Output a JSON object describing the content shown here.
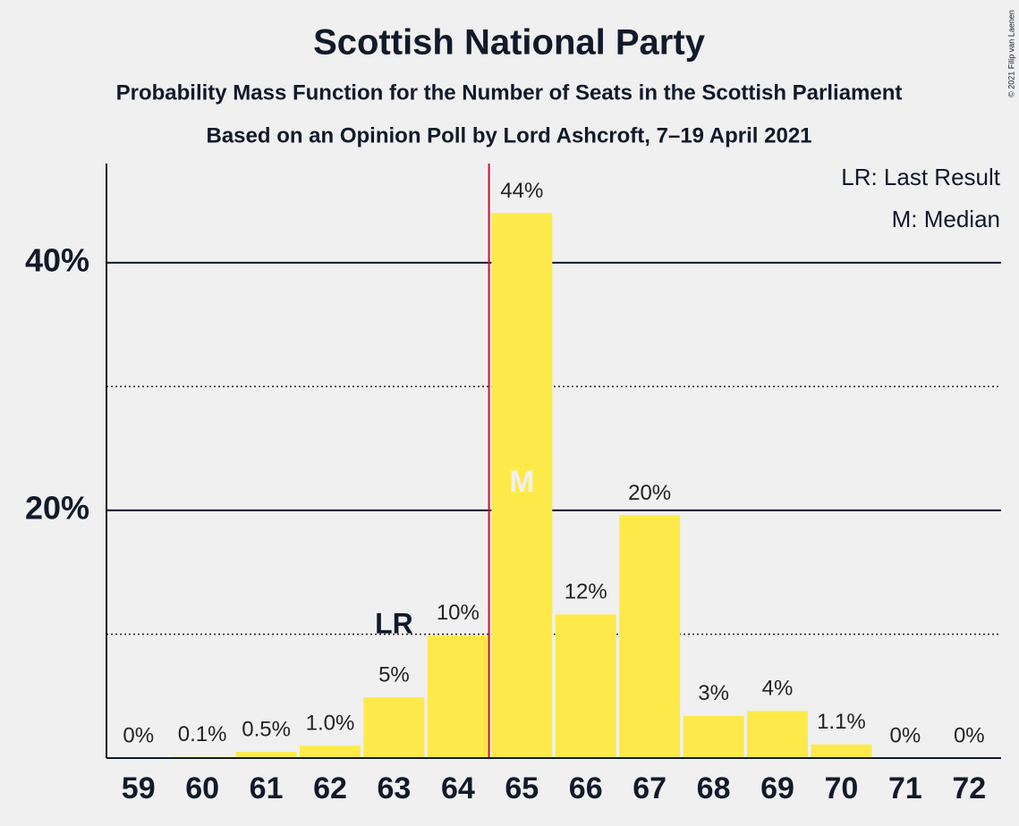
{
  "chart_data": {
    "type": "bar",
    "title": "Scottish National Party",
    "subtitle": "Probability Mass Function for the Number of Seats in the Scottish Parliament",
    "subtitle2": "Based on an Opinion Poll by Lord Ashcroft, 7–19 April 2021",
    "copyright": "© 2021 Filip van Laenen",
    "categories": [
      "59",
      "60",
      "61",
      "62",
      "63",
      "64",
      "65",
      "66",
      "67",
      "68",
      "69",
      "70",
      "71",
      "72"
    ],
    "values": [
      0,
      0.1,
      0.5,
      1.0,
      4.9,
      9.9,
      44.0,
      11.6,
      19.6,
      3.4,
      3.8,
      1.1,
      0,
      0
    ],
    "value_labels": [
      "0%",
      "0.1%",
      "0.5%",
      "1.0%",
      "5%",
      "10%",
      "44%",
      "12%",
      "20%",
      "3%",
      "4%",
      "1.1%",
      "0%",
      "0%"
    ],
    "color": "#fdea4a",
    "ylim": [
      0,
      48
    ],
    "yticks": [
      {
        "value": 20,
        "label": "20%"
      },
      {
        "value": 40,
        "label": "40%"
      }
    ],
    "minor_yticks": [
      10,
      30
    ],
    "grid": true,
    "median_index": 6,
    "median_label": "M",
    "median_color": "#c8102e",
    "last_result_index": 4,
    "last_result_label": "LR",
    "legend": [
      "LR: Last Result",
      "M: Median"
    ]
  }
}
